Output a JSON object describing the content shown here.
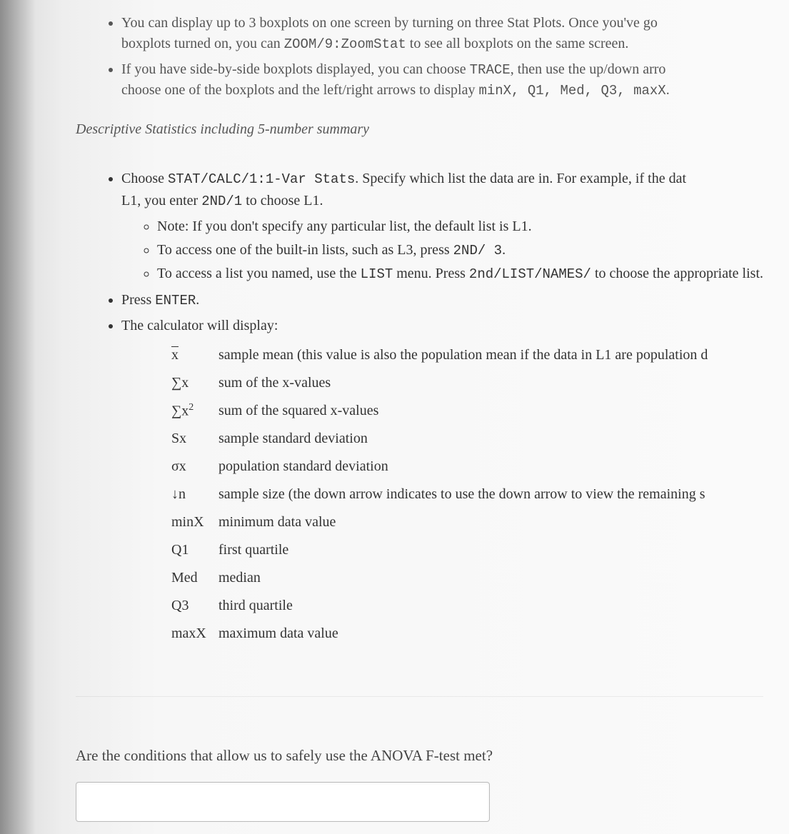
{
  "text_color": "#444444",
  "muted_color": "#555555",
  "background_gradient": [
    "#d8d8d8",
    "#eeeeee",
    "#f7f7f7",
    "#fafafa"
  ],
  "font_body": "Georgia, 'Times New Roman', serif",
  "font_mono": "'Courier New', Courier, monospace",
  "font_size_body_pt": 15,
  "intro": {
    "bullet1_a": "You can display up to 3 boxplots on one screen by turning on three Stat Plots. Once you've go",
    "bullet1_b": "boxplots turned on, you can ",
    "bullet1_mono": "ZOOM/9:ZoomStat",
    "bullet1_c": " to see all boxplots on the same screen.",
    "bullet2_a": "If you have side-by-side boxplots displayed, you can choose ",
    "bullet2_mono1": "TRACE",
    "bullet2_b": ", then use the up/down arro",
    "bullet2_c": "choose one of the boxplots and the left/right arrows to display ",
    "bullet2_mono2": "minX, Q1, Med, Q3, maxX",
    "bullet2_d": "."
  },
  "section_heading": "Descriptive Statistics including 5-number summary",
  "main": {
    "m1_a": "Choose ",
    "m1_mono1": "STAT/CALC/1:1-Var Stats",
    "m1_b": ". Specify which list the data are in. For example, if the dat",
    "m1_c": "L1, you enter ",
    "m1_mono2": "2ND/1",
    "m1_d": " to choose L1.",
    "sub1": "Note: If you don't specify any particular list, the default list is L1.",
    "sub2_a": "To access one of the built-in lists, such as L3, press ",
    "sub2_mono": "2ND/ 3",
    "sub2_b": ".",
    "sub3_a": "To access a list you named, use the ",
    "sub3_mono1": "LIST",
    "sub3_b": " menu. Press ",
    "sub3_mono2": "2nd/LIST/NAMES/",
    "sub3_c": " to choose the appropriate list.",
    "m2_a": "Press ",
    "m2_mono": "ENTER",
    "m2_b": ".",
    "m3": "The calculator will display:"
  },
  "stats": [
    {
      "symbol_html": "x",
      "overline": true,
      "desc": "sample mean (this value is also the population mean if the data in L1 are population d"
    },
    {
      "symbol_html": "∑x",
      "desc": "sum of the x-values"
    },
    {
      "symbol_html": "∑x",
      "sup": "2",
      "desc": "sum of the squared x-values"
    },
    {
      "symbol_html": "Sx",
      "desc": "sample standard deviation"
    },
    {
      "symbol_html": "σx",
      "desc": "population standard deviation"
    },
    {
      "symbol_html": "↓n",
      "desc": "sample size (the down arrow indicates to use the down arrow to view the remaining s"
    },
    {
      "symbol_html": "minX",
      "desc": "minimum data value"
    },
    {
      "symbol_html": "Q1",
      "desc": "first quartile"
    },
    {
      "symbol_html": "Med",
      "desc": "median"
    },
    {
      "symbol_html": "Q3",
      "desc": "third quartile"
    },
    {
      "symbol_html": "maxX",
      "desc": "maximum data value"
    }
  ],
  "question": "Are the conditions that allow us to safely use the ANOVA F-test met?",
  "answer_placeholder": ""
}
